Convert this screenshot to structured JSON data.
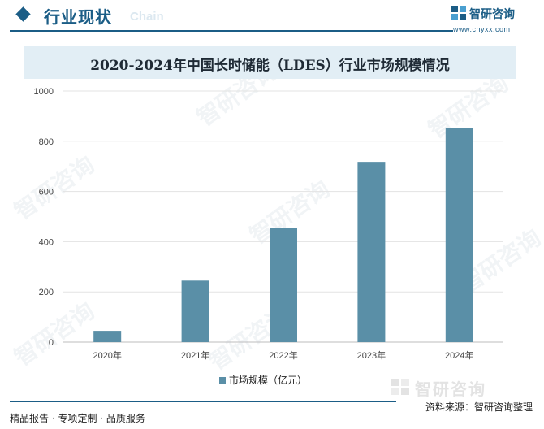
{
  "header": {
    "title": "行业现状",
    "ghost_text": "Chain"
  },
  "brand": {
    "name": "智研咨询",
    "url": "www.chyxx.com"
  },
  "watermark_text": "智研咨询",
  "chart_data": {
    "type": "bar",
    "title": "2020-2024年中国长时储能（LDES）行业市场规模情况",
    "categories": [
      "2020年",
      "2021年",
      "2022年",
      "2023年",
      "2024年"
    ],
    "series": [
      {
        "name": "市场规模（亿元）",
        "values": [
          45,
          245,
          455,
          718,
          853
        ],
        "color": "#5a8fa7"
      }
    ],
    "ylim": [
      0,
      1000
    ],
    "yticks": [
      0,
      200,
      400,
      600,
      800,
      1000
    ],
    "grid": true,
    "legend_position": "bottom-center"
  },
  "footer": {
    "logo_text": "智研咨询",
    "source": "资料来源：智研咨询整理",
    "services": "精品报告 · 专项定制 · 品质服务"
  }
}
